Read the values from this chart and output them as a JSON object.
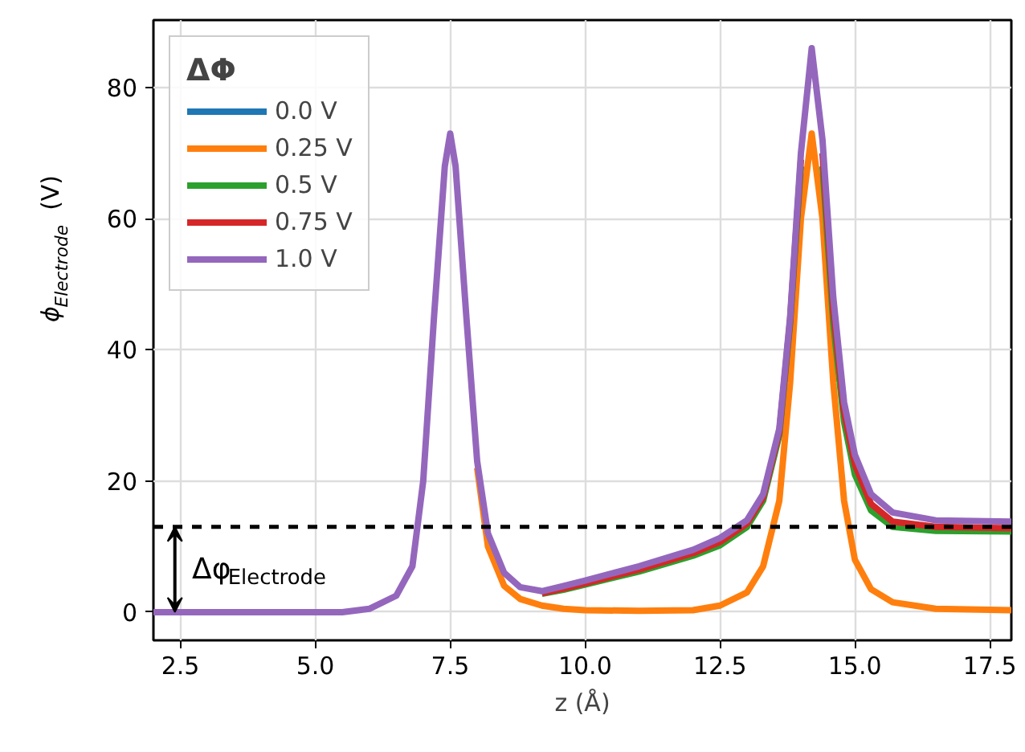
{
  "chart_data": {
    "type": "line",
    "xlabel": "z (Å)",
    "ylabel": "ϕ$_{Electrode}$ (V)",
    "legend_title": "ΔΦ",
    "x": [
      2.0,
      5.5,
      6.0,
      6.5,
      6.8,
      7.0,
      7.2,
      7.4,
      7.5,
      7.6,
      7.8,
      8.0,
      8.2,
      8.5,
      8.8,
      9.2,
      9.6,
      10.0,
      11.0,
      12.0,
      12.5,
      13.0,
      13.3,
      13.6,
      13.8,
      14.0,
      14.2,
      14.4,
      14.6,
      14.8,
      15.0,
      15.3,
      15.7,
      16.5,
      17.9
    ],
    "series": [
      {
        "name": "0.0 V",
        "color": "#1f77b4",
        "values": [
          null,
          null,
          null,
          null,
          null,
          null,
          null,
          null,
          null,
          null,
          null,
          null,
          null,
          null,
          null,
          null,
          null,
          null,
          null,
          null,
          null,
          null,
          null,
          null,
          null,
          null,
          null,
          null,
          null,
          null,
          null,
          null,
          null,
          null,
          null
        ]
      },
      {
        "name": "0.25 V",
        "color": "#ff7f0e",
        "values": [
          null,
          null,
          null,
          null,
          null,
          null,
          null,
          null,
          null,
          null,
          null,
          22,
          10,
          4,
          2,
          1,
          0.5,
          0.3,
          0.2,
          0.3,
          1,
          3,
          7,
          17,
          35,
          60,
          73,
          60,
          35,
          17,
          8,
          3.5,
          1.5,
          0.5,
          0.3
        ]
      },
      {
        "name": "0.5 V",
        "color": "#2ca02c",
        "values": [
          null,
          null,
          null,
          null,
          null,
          null,
          null,
          null,
          null,
          null,
          null,
          null,
          null,
          null,
          null,
          2.8,
          3.4,
          4.2,
          6.2,
          8.6,
          10.2,
          13,
          17,
          27,
          44,
          68,
          null,
          68,
          44,
          29,
          21,
          15.5,
          13,
          12.4,
          12.3
        ]
      },
      {
        "name": "0.75 V",
        "color": "#d62728",
        "values": [
          null,
          null,
          null,
          null,
          null,
          null,
          null,
          null,
          null,
          null,
          null,
          null,
          null,
          null,
          null,
          2.9,
          3.6,
          4.4,
          6.5,
          9,
          10.7,
          13.5,
          17.5,
          27.5,
          44.5,
          69,
          null,
          70,
          46,
          30.5,
          22.5,
          16.5,
          13.8,
          13,
          12.8
        ]
      },
      {
        "name": "1.0 V",
        "color": "#9467bd",
        "values": [
          0,
          0,
          0.5,
          2.5,
          7,
          20,
          45,
          68,
          73,
          68,
          45,
          23,
          12,
          6,
          3.8,
          3.2,
          4,
          4.8,
          7,
          9.5,
          11.3,
          14,
          18,
          28,
          45,
          70,
          86,
          72,
          48,
          32,
          24,
          18,
          15.2,
          14,
          13.8
        ]
      }
    ],
    "xlim": [
      2.0,
      17.9
    ],
    "ylim": [
      -4.3,
      90.3
    ],
    "xticks": [
      {
        "value": 2.5,
        "label": "2.5"
      },
      {
        "value": 5,
        "label": "5.0"
      },
      {
        "value": 7.5,
        "label": "7.5"
      },
      {
        "value": 10,
        "label": "10.0"
      },
      {
        "value": 12.5,
        "label": "12.5"
      },
      {
        "value": 15,
        "label": "15.0"
      },
      {
        "value": 17.5,
        "label": "17.5"
      }
    ],
    "yticks": [
      0,
      20,
      40,
      60,
      80
    ],
    "ref_lines": [
      {
        "axis": "y",
        "value": 13,
        "label": null,
        "color": "#000000",
        "line_style": "dashed"
      }
    ],
    "annotations": [
      "Δφ$_{Electrode}$"
    ],
    "grid": true,
    "legend": "top left",
    "line_style": "solid",
    "marker": "none"
  }
}
